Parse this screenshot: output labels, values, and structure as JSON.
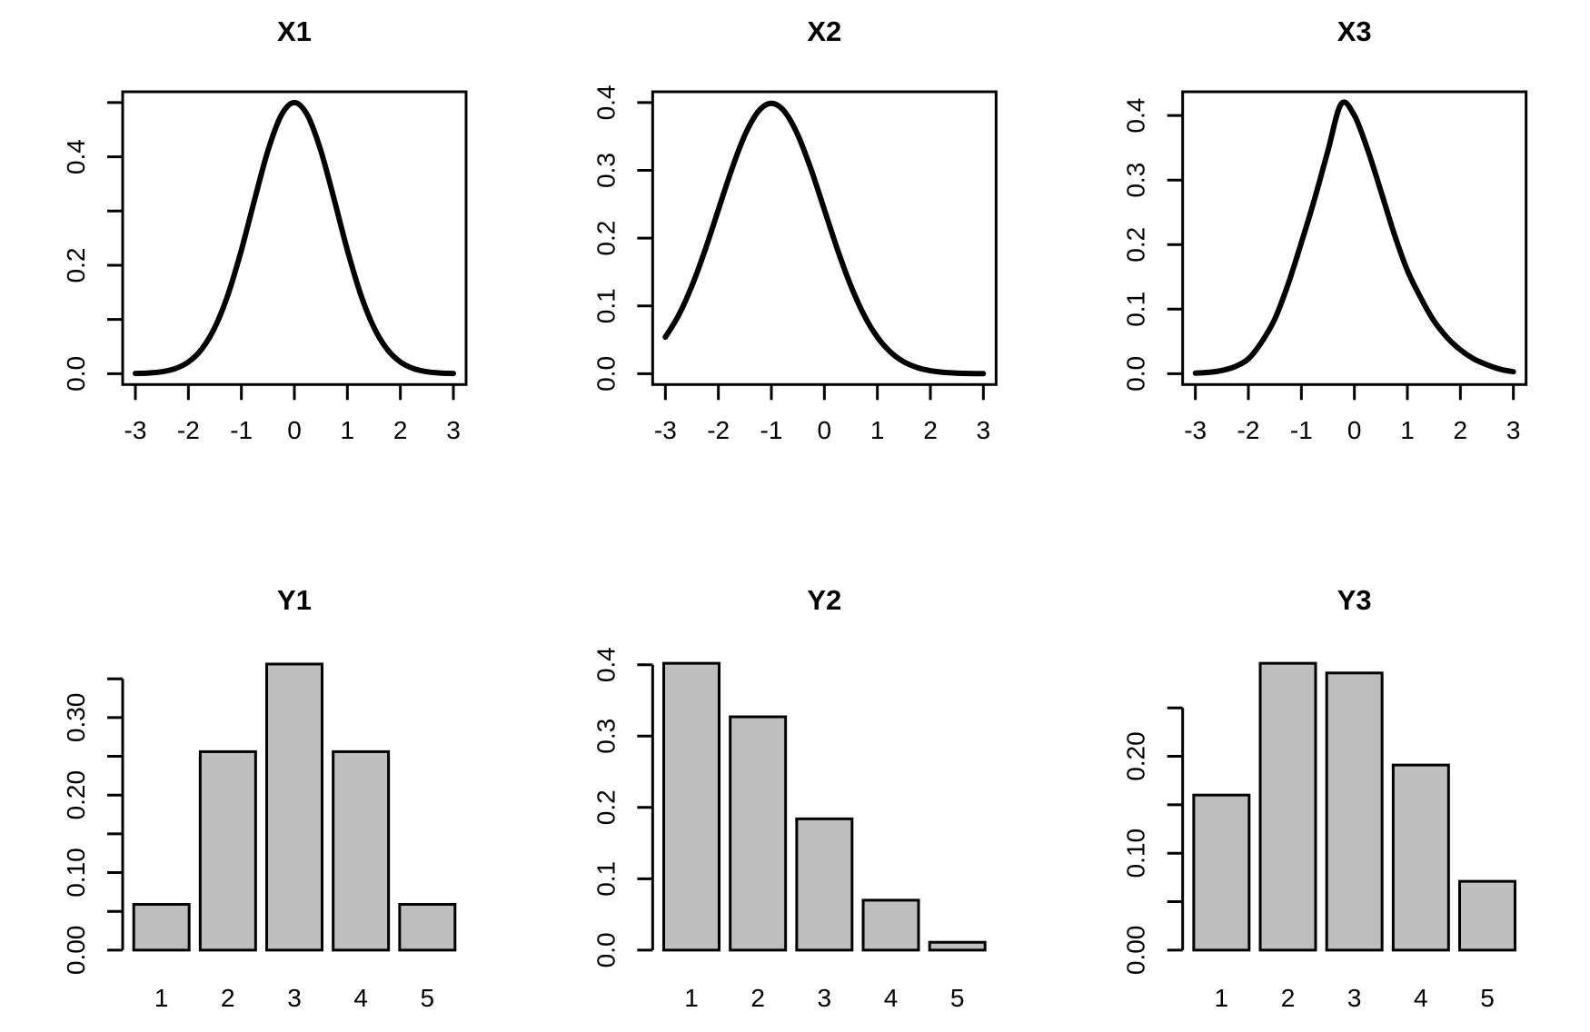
{
  "app": {
    "background": "#ffffff",
    "foreground": "#000000",
    "bar_fill": "#bebebe"
  },
  "chart_data": [
    {
      "type": "line",
      "title": "X1",
      "position": "top-left",
      "xlabel": "",
      "ylabel": "",
      "xlim": [
        -3,
        3
      ],
      "ylim": [
        0,
        0.5
      ],
      "grid": false,
      "legend": "none",
      "line_color": "#000000",
      "xticks": [
        {
          "v": -3,
          "label": "-3"
        },
        {
          "v": -2,
          "label": "-2"
        },
        {
          "v": -1,
          "label": "-1"
        },
        {
          "v": 0,
          "label": "0"
        },
        {
          "v": 1,
          "label": "1"
        },
        {
          "v": 2,
          "label": "2"
        },
        {
          "v": 3,
          "label": "3"
        }
      ],
      "yticks": [
        {
          "v": 0,
          "label": "0.0"
        },
        {
          "v": 0.1,
          "label": ""
        },
        {
          "v": 0.2,
          "label": "0.2"
        },
        {
          "v": 0.3,
          "label": ""
        },
        {
          "v": 0.4,
          "label": "0.4"
        },
        {
          "v": 0.5,
          "label": ""
        }
      ],
      "points": [
        [
          -3,
          0.0004
        ],
        [
          -2.75,
          0.0013
        ],
        [
          -2.5,
          0.0037
        ],
        [
          -2.25,
          0.0094
        ],
        [
          -2,
          0.0216
        ],
        [
          -1.75,
          0.0451
        ],
        [
          -1.5,
          0.0856
        ],
        [
          -1.25,
          0.1467
        ],
        [
          -1,
          0.228
        ],
        [
          -0.75,
          0.3215
        ],
        [
          -0.5,
          0.411
        ],
        [
          -0.25,
          0.4761
        ],
        [
          0,
          0.5
        ],
        [
          0.25,
          0.4761
        ],
        [
          0.5,
          0.411
        ],
        [
          0.75,
          0.3215
        ],
        [
          1,
          0.228
        ],
        [
          1.25,
          0.1467
        ],
        [
          1.5,
          0.0856
        ],
        [
          1.75,
          0.0451
        ],
        [
          2,
          0.0216
        ],
        [
          2.25,
          0.0094
        ],
        [
          2.5,
          0.0037
        ],
        [
          2.75,
          0.0013
        ],
        [
          3,
          0.0004
        ]
      ]
    },
    {
      "type": "line",
      "title": "X2",
      "position": "top-center",
      "xlabel": "",
      "ylabel": "",
      "xlim": [
        -3,
        3
      ],
      "ylim": [
        0,
        0.4
      ],
      "grid": false,
      "legend": "none",
      "line_color": "#000000",
      "xticks": [
        {
          "v": -3,
          "label": "-3"
        },
        {
          "v": -2,
          "label": "-2"
        },
        {
          "v": -1,
          "label": "-1"
        },
        {
          "v": 0,
          "label": "0"
        },
        {
          "v": 1,
          "label": "1"
        },
        {
          "v": 2,
          "label": "2"
        },
        {
          "v": 3,
          "label": "3"
        }
      ],
      "yticks": [
        {
          "v": 0,
          "label": "0.0"
        },
        {
          "v": 0.1,
          "label": "0.1"
        },
        {
          "v": 0.2,
          "label": "0.2"
        },
        {
          "v": 0.3,
          "label": "0.3"
        },
        {
          "v": 0.4,
          "label": "0.4"
        }
      ],
      "points": [
        [
          -3,
          0.054
        ],
        [
          -2.75,
          0.0863
        ],
        [
          -2.5,
          0.1295
        ],
        [
          -2.25,
          0.1826
        ],
        [
          -2,
          0.242
        ],
        [
          -1.75,
          0.3011
        ],
        [
          -1.5,
          0.352
        ],
        [
          -1.25,
          0.3866
        ],
        [
          -1,
          0.3989
        ],
        [
          -0.75,
          0.3866
        ],
        [
          -0.5,
          0.352
        ],
        [
          -0.25,
          0.3011
        ],
        [
          0,
          0.242
        ],
        [
          0.25,
          0.1826
        ],
        [
          0.5,
          0.1295
        ],
        [
          0.75,
          0.0863
        ],
        [
          1,
          0.054
        ],
        [
          1.25,
          0.0317
        ],
        [
          1.5,
          0.0175
        ],
        [
          1.75,
          0.0091
        ],
        [
          2,
          0.0044
        ],
        [
          2.25,
          0.002
        ],
        [
          2.5,
          0.0009
        ],
        [
          2.75,
          0.0003
        ],
        [
          3,
          0.0001
        ]
      ]
    },
    {
      "type": "line",
      "title": "X3",
      "position": "top-right",
      "xlabel": "",
      "ylabel": "",
      "xlim": [
        -3,
        3
      ],
      "ylim": [
        0,
        0.42
      ],
      "grid": false,
      "legend": "none",
      "line_color": "#000000",
      "xticks": [
        {
          "v": -3,
          "label": "-3"
        },
        {
          "v": -2,
          "label": "-2"
        },
        {
          "v": -1,
          "label": "-1"
        },
        {
          "v": 0,
          "label": "0"
        },
        {
          "v": 1,
          "label": "1"
        },
        {
          "v": 2,
          "label": "2"
        },
        {
          "v": 3,
          "label": "3"
        }
      ],
      "yticks": [
        {
          "v": 0,
          "label": "0.0"
        },
        {
          "v": 0.1,
          "label": "0.1"
        },
        {
          "v": 0.2,
          "label": "0.2"
        },
        {
          "v": 0.3,
          "label": "0.3"
        },
        {
          "v": 0.4,
          "label": "0.4"
        }
      ],
      "points": [
        [
          -3,
          0.001
        ],
        [
          -2.75,
          0.002
        ],
        [
          -2.5,
          0.005
        ],
        [
          -2.25,
          0.011
        ],
        [
          -2,
          0.023
        ],
        [
          -1.75,
          0.049
        ],
        [
          -1.5,
          0.085
        ],
        [
          -1.25,
          0.139
        ],
        [
          -1,
          0.203
        ],
        [
          -0.75,
          0.271
        ],
        [
          -0.5,
          0.345
        ],
        [
          -0.25,
          0.418
        ],
        [
          0,
          0.4
        ],
        [
          0.25,
          0.347
        ],
        [
          0.5,
          0.283
        ],
        [
          0.75,
          0.217
        ],
        [
          1,
          0.16
        ],
        [
          1.25,
          0.118
        ],
        [
          1.5,
          0.082
        ],
        [
          1.75,
          0.056
        ],
        [
          2,
          0.037
        ],
        [
          2.25,
          0.023
        ],
        [
          2.5,
          0.014
        ],
        [
          2.75,
          0.007
        ],
        [
          3,
          0.003
        ]
      ]
    },
    {
      "type": "bar",
      "title": "Y1",
      "position": "bottom-left",
      "xlabel": "",
      "ylabel": "",
      "categories": [
        "1",
        "2",
        "3",
        "4",
        "5"
      ],
      "values": [
        0.059,
        0.256,
        0.369,
        0.256,
        0.059
      ],
      "ylim": [
        0,
        0.37
      ],
      "grid": false,
      "legend": "none",
      "bar_color": "#bebebe",
      "bar_border": "#000000",
      "yticks": [
        {
          "v": 0,
          "label": "0.00"
        },
        {
          "v": 0.05,
          "label": ""
        },
        {
          "v": 0.1,
          "label": "0.10"
        },
        {
          "v": 0.15,
          "label": ""
        },
        {
          "v": 0.2,
          "label": "0.20"
        },
        {
          "v": 0.25,
          "label": ""
        },
        {
          "v": 0.3,
          "label": "0.30"
        },
        {
          "v": 0.35,
          "label": ""
        }
      ]
    },
    {
      "type": "bar",
      "title": "Y2",
      "position": "bottom-center",
      "xlabel": "",
      "ylabel": "",
      "categories": [
        "1",
        "2",
        "3",
        "4",
        "5"
      ],
      "values": [
        0.402,
        0.327,
        0.184,
        0.07,
        0.011
      ],
      "ylim": [
        0,
        0.402
      ],
      "grid": false,
      "legend": "none",
      "bar_color": "#bebebe",
      "bar_border": "#000000",
      "yticks": [
        {
          "v": 0,
          "label": "0.0"
        },
        {
          "v": 0.1,
          "label": "0.1"
        },
        {
          "v": 0.2,
          "label": "0.2"
        },
        {
          "v": 0.3,
          "label": "0.3"
        },
        {
          "v": 0.4,
          "label": "0.4"
        }
      ]
    },
    {
      "type": "bar",
      "title": "Y3",
      "position": "bottom-right",
      "xlabel": "",
      "ylabel": "",
      "categories": [
        "1",
        "2",
        "3",
        "4",
        "5"
      ],
      "values": [
        0.16,
        0.296,
        0.286,
        0.191,
        0.071
      ],
      "ylim": [
        0,
        0.296
      ],
      "grid": false,
      "legend": "none",
      "bar_color": "#bebebe",
      "bar_border": "#000000",
      "yticks": [
        {
          "v": 0,
          "label": "0.00"
        },
        {
          "v": 0.05,
          "label": ""
        },
        {
          "v": 0.1,
          "label": "0.10"
        },
        {
          "v": 0.15,
          "label": ""
        },
        {
          "v": 0.2,
          "label": "0.20"
        },
        {
          "v": 0.25,
          "label": ""
        }
      ]
    }
  ]
}
